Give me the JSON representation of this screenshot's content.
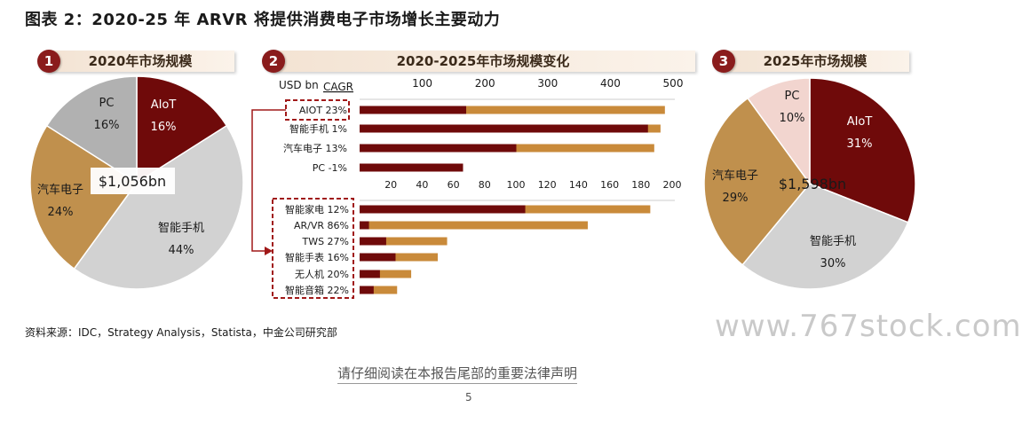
{
  "page": {
    "title": "图表 2：2020-25 年 ARVR 将提供消费电子市场增长主要动力",
    "source": "资料来源：IDC，Strategy Analysis，Statista，中金公司研究部",
    "watermark": "www.767stock.com",
    "disclaimer": "请仔细阅读在本报告尾部的重要法律声明",
    "page_number": "5"
  },
  "panels": {
    "p1": {
      "badge": "1",
      "title": "2020年市场规模"
    },
    "p2": {
      "badge": "2",
      "title": "2020-2025年市场规模变化"
    },
    "p3": {
      "badge": "3",
      "title": "2025年市场规模"
    }
  },
  "colors": {
    "dark_red": "#6f0a0a",
    "orange": "#c98a3a",
    "tan": "#c0904d",
    "gray": "#bdbdbd",
    "light_gray": "#d2d2d2",
    "pink": "#f2d5cf",
    "badge": "#8a1c1c"
  },
  "chart_data": [
    {
      "type": "pie",
      "title": "2020年市场规模",
      "center_label": "$1,056bn",
      "slices": [
        {
          "label": "AIoT",
          "value": 16,
          "display": "16%",
          "color": "#6f0a0a"
        },
        {
          "label": "智能手机",
          "value": 44,
          "display": "44%",
          "color": "#d2d2d2"
        },
        {
          "label": "汽车电子",
          "value": 24,
          "display": "24%",
          "color": "#c0904d"
        },
        {
          "label": "PC",
          "value": 16,
          "display": "16%",
          "color": "#b1b1b1"
        }
      ]
    },
    {
      "type": "bar",
      "title": "2020-2025年市场规模变化",
      "unit_label": "USD bn",
      "cagr_label": "CAGR",
      "top": {
        "xlim": [
          0,
          500
        ],
        "ticks": [
          "100",
          "200",
          "300",
          "400",
          "500"
        ],
        "categories": [
          "AIOT 23%",
          "智能手机 1%",
          "汽车电子 13%",
          "PC -1%"
        ],
        "series": [
          {
            "values": [
              170,
              460,
              250,
              165
            ]
          },
          {
            "values": [
              487,
              480,
              470,
              165
            ]
          }
        ]
      },
      "bottom": {
        "xlim": [
          0,
          200
        ],
        "ticks": [
          "20",
          "40",
          "60",
          "80",
          "100",
          "120",
          "140",
          "160",
          "180",
          "200"
        ],
        "categories": [
          "智能家电 12%",
          "AR/VR 86%",
          "TWS 27%",
          "智能手表 16%",
          "无人机 20%",
          "智能音箱 22%"
        ],
        "series": [
          {
            "values": [
              106,
              6,
              17,
              23,
              13,
              9
            ]
          },
          {
            "values": [
              186,
              146,
              56,
              50,
              33,
              24
            ]
          }
        ]
      }
    },
    {
      "type": "pie",
      "title": "2025年市场规模",
      "center_label": "$1,598bn",
      "slices": [
        {
          "label": "AIoT",
          "value": 31,
          "display": "31%",
          "color": "#6f0a0a"
        },
        {
          "label": "智能手机",
          "value": 30,
          "display": "30%",
          "color": "#d2d2d2"
        },
        {
          "label": "汽车电子",
          "value": 29,
          "display": "29%",
          "color": "#c0904d"
        },
        {
          "label": "PC",
          "value": 10,
          "display": "10%",
          "color": "#f2d5cf"
        }
      ]
    }
  ]
}
